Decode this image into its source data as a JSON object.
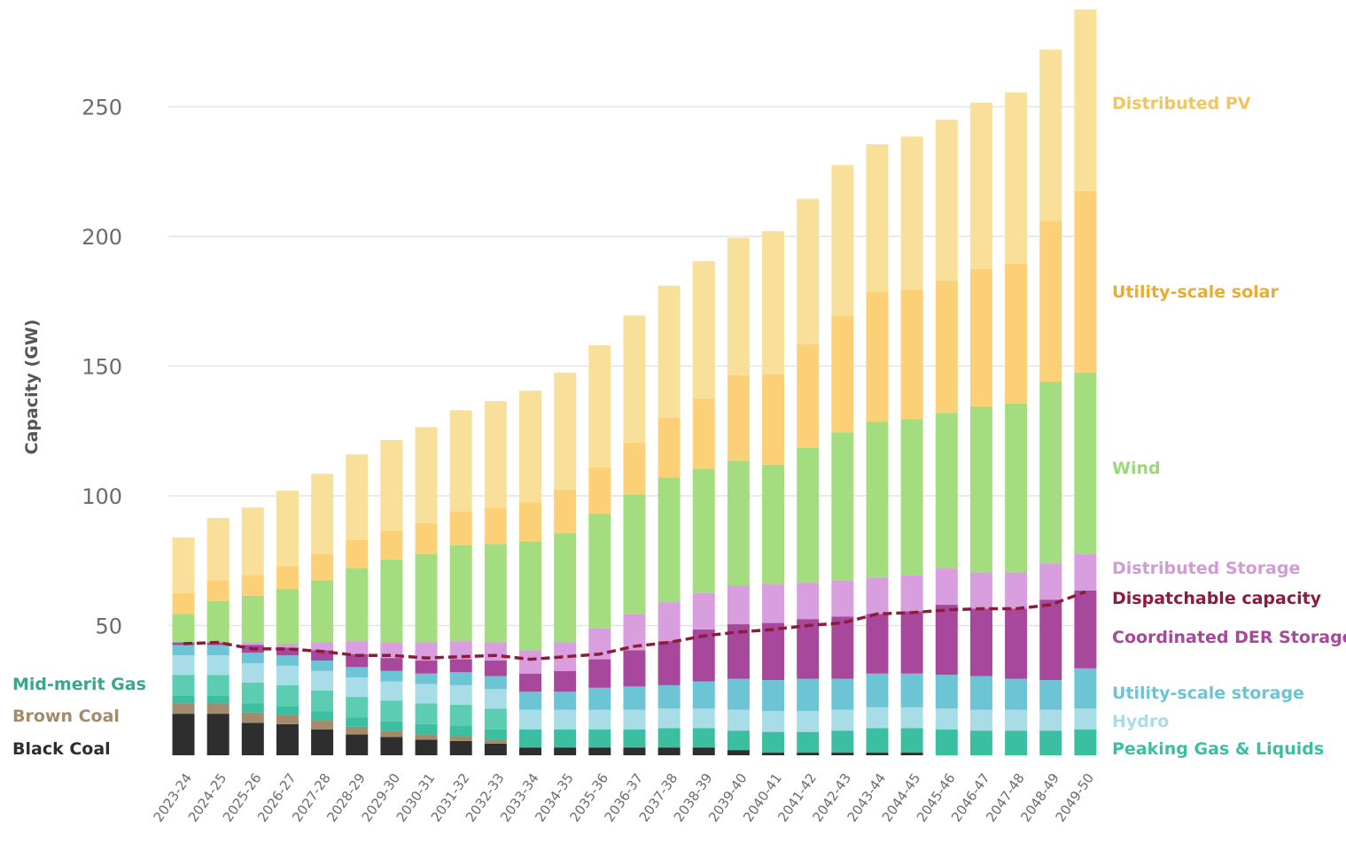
{
  "chart_data": {
    "type": "bar",
    "stacked": true,
    "ylabel": "Capacity (GW)",
    "xlabel": "",
    "ylim": [
      0,
      290
    ],
    "yticks": [
      50,
      100,
      150,
      200,
      250
    ],
    "grid": true,
    "categories": [
      "2023-24",
      "2024-25",
      "2025-26",
      "2026-27",
      "2027-28",
      "2028-29",
      "2029-30",
      "2030-31",
      "2031-32",
      "2032-33",
      "2033-34",
      "2034-35",
      "2035-36",
      "2036-37",
      "2037-38",
      "2038-39",
      "2039-40",
      "2040-41",
      "2041-42",
      "2042-43",
      "2043-44",
      "2044-45",
      "2045-46",
      "2046-47",
      "2047-48",
      "2048-49",
      "2049-50"
    ],
    "series": [
      {
        "name": "Black Coal",
        "color": "#2e2e2e",
        "values": [
          16,
          16,
          12.5,
          12,
          10,
          8,
          7,
          6,
          5.5,
          4.5,
          3,
          3,
          3,
          3,
          3,
          3,
          2,
          1,
          1,
          1,
          1,
          1,
          0,
          0,
          0,
          0,
          0
        ]
      },
      {
        "name": "Brown Coal",
        "color": "#a38b6c",
        "values": [
          4,
          4,
          4,
          3.5,
          3.5,
          3,
          2.5,
          2,
          2,
          1.5,
          0,
          0,
          0,
          0,
          0,
          0,
          0,
          0,
          0,
          0,
          0,
          0,
          0,
          0,
          0,
          0,
          0
        ]
      },
      {
        "name": "Peaking Gas & Liquids",
        "color": "#3cbfa0",
        "values": [
          3,
          3,
          3.5,
          3.5,
          3.5,
          3.5,
          3.5,
          4,
          4,
          4,
          7,
          7,
          7,
          7,
          7.5,
          7.5,
          7.5,
          8,
          8,
          8.5,
          9.5,
          9.5,
          10,
          9.5,
          9.5,
          9.5,
          10
        ]
      },
      {
        "name": "Mid-merit Gas",
        "color": "#5ccdb0",
        "values": [
          8,
          8,
          8,
          8,
          8,
          8,
          8,
          8,
          8,
          8,
          0,
          0,
          0,
          0,
          0,
          0,
          0,
          0,
          0,
          0,
          0,
          0,
          0,
          0,
          0,
          0,
          0
        ]
      },
      {
        "name": "Hydro",
        "color": "#a8dde8",
        "values": [
          7.5,
          7.5,
          7.5,
          7.5,
          7.5,
          7.5,
          7.5,
          7.5,
          7.5,
          7.5,
          7.5,
          7.5,
          7.5,
          7.5,
          7.5,
          7.5,
          8,
          8,
          8,
          8,
          8,
          8,
          8,
          8,
          8,
          8,
          8
        ]
      },
      {
        "name": "Utility-scale storage",
        "color": "#6cc4d4",
        "values": [
          4,
          4,
          4,
          4,
          4,
          4,
          4,
          4,
          5,
          5,
          7,
          7,
          8.5,
          9,
          9,
          10.5,
          12,
          12,
          12.5,
          12,
          13,
          13,
          13,
          13,
          12,
          11.5,
          15.5
        ]
      },
      {
        "name": "Coordinated DER Storage",
        "color": "#a8489c",
        "values": [
          1,
          1,
          3,
          3,
          4,
          5,
          5,
          5,
          5,
          6,
          7,
          8,
          11,
          14,
          17,
          20,
          21,
          22,
          23,
          24,
          23,
          24,
          27,
          26,
          27,
          31,
          30
        ]
      },
      {
        "name": "Distributed Storage",
        "color": "#d99ede",
        "values": [
          0,
          0,
          1,
          1.5,
          3,
          5,
          6,
          7,
          7,
          7,
          9,
          11,
          12,
          14,
          15,
          14,
          15,
          15,
          14,
          14,
          14,
          14,
          14,
          14,
          14,
          14,
          14
        ]
      },
      {
        "name": "Wind",
        "color": "#a3dd7f",
        "values": [
          11,
          16,
          18,
          21,
          24,
          28,
          32,
          34,
          37,
          38,
          42,
          42,
          44,
          46,
          48,
          48,
          48,
          46,
          52,
          57,
          60,
          60,
          60,
          64,
          65,
          70,
          70
        ]
      },
      {
        "name": "Utility-scale solar",
        "color": "#fbd077",
        "values": [
          8,
          8,
          8,
          9,
          10,
          11,
          11,
          12,
          13,
          14,
          15,
          17,
          18,
          20,
          23,
          27,
          33,
          35,
          40,
          45,
          50,
          50,
          51,
          53,
          54,
          62,
          70
        ]
      },
      {
        "name": "Distributed PV",
        "color": "#f9e09a",
        "values": [
          21.5,
          24,
          26,
          29,
          31,
          33,
          35,
          37,
          39,
          41,
          43,
          45,
          47,
          49,
          51,
          53,
          53,
          55,
          56,
          58,
          57,
          59,
          62,
          64,
          66,
          66,
          70
        ]
      }
    ],
    "line": {
      "name": "Dispatchable capacity",
      "color": "#8c1c3a",
      "style": "dashed",
      "values": [
        43,
        43.5,
        41,
        41,
        40,
        38.5,
        38.5,
        37.5,
        38,
        38.5,
        37,
        38,
        39,
        42,
        43.5,
        46,
        47.5,
        48.5,
        50,
        51,
        54.5,
        55,
        56,
        56.5,
        56.5,
        58,
        63
      ]
    },
    "legend": [
      {
        "label": "Distributed PV",
        "color": "#f0c65e",
        "placement": "right"
      },
      {
        "label": "Utility-scale solar",
        "color": "#e8ad2e",
        "placement": "right"
      },
      {
        "label": "Wind",
        "color": "#9ed67a",
        "placement": "right"
      },
      {
        "label": "Distributed Storage",
        "color": "#d29bd8",
        "placement": "right"
      },
      {
        "label": "Dispatchable capacity",
        "color": "#8c1c3a",
        "placement": "right"
      },
      {
        "label": "Coordinated DER Storage",
        "color": "#a8489c",
        "placement": "right"
      },
      {
        "label": "Utility-scale storage",
        "color": "#6cc4d4",
        "placement": "right"
      },
      {
        "label": "Hydro",
        "color": "#a8dde8",
        "placement": "right"
      },
      {
        "label": "Peaking Gas & Liquids",
        "color": "#3cbfa0",
        "placement": "right"
      },
      {
        "label": "Mid-merit Gas",
        "color": "#3aa68c",
        "placement": "left"
      },
      {
        "label": "Brown Coal",
        "color": "#a38b6c",
        "placement": "left"
      },
      {
        "label": "Black Coal",
        "color": "#2e2e2e",
        "placement": "left"
      }
    ]
  }
}
